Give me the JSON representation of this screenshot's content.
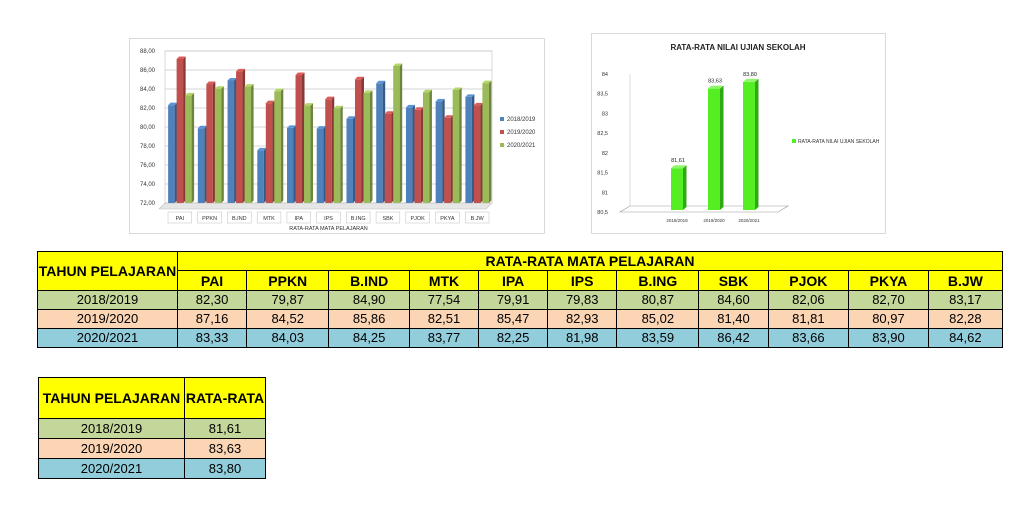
{
  "chart_data": [
    {
      "type": "bar",
      "title": "",
      "xlabel": "RATA-RATA MATA PELAJARAN",
      "ylabel": "",
      "ylim": [
        72,
        88
      ],
      "y_ticks": [
        "72,00",
        "74,00",
        "76,00",
        "78,00",
        "80,00",
        "82,00",
        "84,00",
        "86,00",
        "88,00"
      ],
      "categories": [
        "PAI",
        "PPKN",
        "B.IND",
        "MTK",
        "IPA",
        "IPS",
        "B.ING",
        "SBK",
        "PJOK",
        "PKYA",
        "B.JW"
      ],
      "legend_position": "right",
      "series": [
        {
          "name": "2018/2019",
          "color": "#4f81bd",
          "values": [
            82.3,
            79.87,
            84.9,
            77.54,
            79.91,
            79.83,
            80.87,
            84.6,
            82.06,
            82.7,
            83.17
          ]
        },
        {
          "name": "2019/2020",
          "color": "#c0504d",
          "values": [
            87.16,
            84.52,
            85.86,
            82.51,
            85.47,
            82.93,
            85.02,
            81.4,
            81.81,
            80.97,
            82.28
          ]
        },
        {
          "name": "2020/2021",
          "color": "#9bbb59",
          "values": [
            83.33,
            84.03,
            84.25,
            83.77,
            82.25,
            81.98,
            83.59,
            86.42,
            83.66,
            83.9,
            84.62
          ]
        }
      ]
    },
    {
      "type": "bar",
      "title": "RATA-RATA NILAI UJIAN SEKOLAH",
      "ylim": [
        80.5,
        84
      ],
      "y_ticks": [
        "80,5",
        "81",
        "81,5",
        "82",
        "82,5",
        "83",
        "83,5",
        "84"
      ],
      "categories": [
        "2018/2019",
        "2019/2020",
        "2020/2021"
      ],
      "legend_position": "right",
      "series": [
        {
          "name": "RATA-RATA NILAI UJIAN SEKOLAH",
          "color": "#55ee22",
          "values": [
            81.61,
            83.63,
            83.8
          ],
          "labels": [
            "81,61",
            "83,63",
            "83,80"
          ]
        }
      ]
    }
  ],
  "main_table": {
    "year_header": "TAHUN PELAJARAN",
    "group_header": "RATA-RATA MATA PELAJARAN",
    "subjects": [
      "PAI",
      "PPKN",
      "B.IND",
      "MTK",
      "IPA",
      "IPS",
      "B.ING",
      "SBK",
      "PJOK",
      "PKYA",
      "B.JW"
    ],
    "rows": [
      {
        "year": "2018/2019",
        "values": [
          "82,30",
          "79,87",
          "84,90",
          "77,54",
          "79,91",
          "79,83",
          "80,87",
          "84,60",
          "82,06",
          "82,70",
          "83,17"
        ]
      },
      {
        "year": "2019/2020",
        "values": [
          "87,16",
          "84,52",
          "85,86",
          "82,51",
          "85,47",
          "82,93",
          "85,02",
          "81,40",
          "81,81",
          "80,97",
          "82,28"
        ]
      },
      {
        "year": "2020/2021",
        "values": [
          "83,33",
          "84,03",
          "84,25",
          "83,77",
          "82,25",
          "81,98",
          "83,59",
          "86,42",
          "83,66",
          "83,90",
          "84,62"
        ]
      }
    ]
  },
  "avg_table": {
    "year_header": "TAHUN PELAJARAN",
    "avg_header": "RATA-RATA",
    "rows": [
      {
        "year": "2018/2019",
        "value": "81,61"
      },
      {
        "year": "2019/2020",
        "value": "83,63"
      },
      {
        "year": "2020/2021",
        "value": "83,80"
      }
    ]
  }
}
